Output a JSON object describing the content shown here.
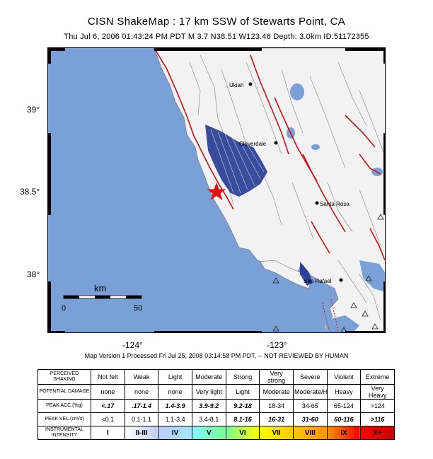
{
  "header": {
    "title": "CISN ShakeMap :  17 km SSW of Stewarts Point, CA",
    "subtitle": "Thu Jul  6, 2006 01:43:24 PM PDT   M 3.7   N38.51 W123.46   Depth: 3.0km   ID:51172355"
  },
  "map": {
    "colors": {
      "ocean": "#7aa0d8",
      "land": "#f2f2f2",
      "shaking": "#1a2f8c",
      "faults": "#cc1111",
      "epicenter": "#e01010"
    },
    "lat_labels": [
      "39°",
      "38.5°",
      "38°"
    ],
    "lon_labels": [
      "-124°",
      "-123°"
    ],
    "cities": [
      {
        "name": "Ukiah"
      },
      {
        "name": "Cloverdale"
      },
      {
        "name": "Santa Rosa"
      },
      {
        "name": "San Rafael"
      }
    ],
    "epicenter": {
      "lat": 38.51,
      "lon": -123.46,
      "icon": "star-icon"
    },
    "scale_bar": {
      "unit": "km",
      "start": "0",
      "end": "50"
    }
  },
  "caption": "Map Version 1 Processed Fri Jul 25, 2008 03:14:58 PM PDT, -- NOT REVIEWED BY HUMAN",
  "legend": {
    "rows": [
      {
        "label": "PERCEIVED SHAKING",
        "values": [
          "Not felt",
          "Weak",
          "Light",
          "Moderate",
          "Strong",
          "Very strong",
          "Severe",
          "Violent",
          "Extreme"
        ]
      },
      {
        "label": "POTENTIAL DAMAGE",
        "values": [
          "none",
          "none",
          "none",
          "Very light",
          "Light",
          "Moderate",
          "Moderate/Heavy",
          "Heavy",
          "Very Heavy"
        ]
      },
      {
        "label": "PEAK ACC.(%g)",
        "values": [
          "<.17",
          ".17-1.4",
          "1.4-3.9",
          "3.9-9.2",
          "9.2-18",
          "18-34",
          "34-65",
          "65-124",
          ">124"
        ]
      },
      {
        "label": "PEAK VEL.(cm/s)",
        "values": [
          "<0.1",
          "0.1-1.1",
          "1.1-3.4",
          "3.4-8.1",
          "8.1-16",
          "16-31",
          "31-60",
          "60-116",
          ">116"
        ]
      },
      {
        "label": "INSTRUMENTAL INTENSITY",
        "values": [
          "I",
          "II-III",
          "IV",
          "V",
          "VI",
          "VII",
          "VIII",
          "IX",
          "X+"
        ]
      }
    ],
    "intensity_colors": [
      "#ffffff",
      "#bfccff",
      "#a0e6ff",
      "#80ffff",
      "#7aff93",
      "#ffff00",
      "#ffc800",
      "#ff9100",
      "#ff0000",
      "#c80000"
    ]
  }
}
